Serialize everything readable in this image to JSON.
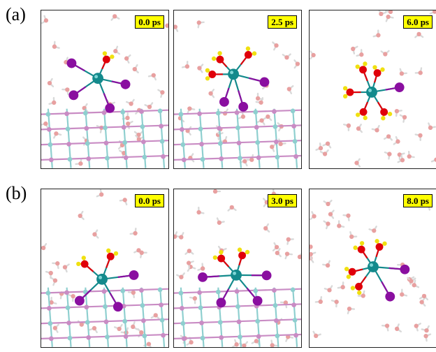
{
  "rows": [
    {
      "label": "(a)",
      "times": [
        "0.0 ps",
        "2.5 ps",
        "6.0 ps"
      ]
    },
    {
      "label": "(b)",
      "times": [
        "0.0 ps",
        "3.0 ps",
        "8.0 ps"
      ]
    }
  ],
  "colors": {
    "metal_center": "#138a8c",
    "iodide": "#8a0fa0",
    "oxygen": "#e0000a",
    "hydrogen": "#f0e010",
    "lattice_teal": "#8ecfcf",
    "lattice_pink": "#c98cc4",
    "water_oxygen": "#e8a0a0",
    "water_hydrogen": "#dddddd",
    "label_box": "#ffff00"
  }
}
